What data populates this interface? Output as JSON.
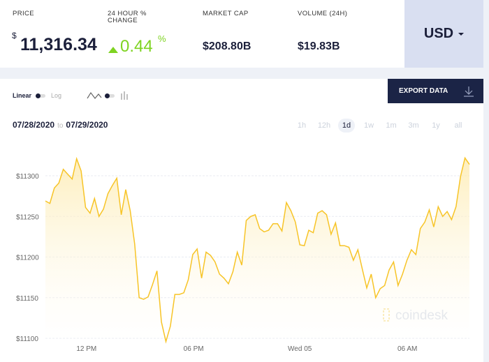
{
  "stats": {
    "price": {
      "label": "PRICE",
      "currency_symbol": "$",
      "value": "11,316.34"
    },
    "change": {
      "label": "24 HOUR % CHANGE",
      "value": "0.44",
      "unit": "%",
      "direction": "up",
      "color": "#7ed321"
    },
    "market_cap": {
      "label": "MARKET CAP",
      "value": "$208.80B"
    },
    "volume": {
      "label": "VOLUME (24H)",
      "value": "$19.83B"
    }
  },
  "currency_select": {
    "value": "USD"
  },
  "controls": {
    "linear_label": "Linear",
    "log_label": "Log",
    "scale": "linear",
    "chart_style": "line",
    "export_label": "EXPORT DATA"
  },
  "date_range": {
    "from": "07/28/2020",
    "to_word": "to",
    "to": "07/29/2020"
  },
  "ranges": [
    {
      "label": "1h"
    },
    {
      "label": "12h"
    },
    {
      "label": "1d",
      "active": true
    },
    {
      "label": "1w"
    },
    {
      "label": "1m"
    },
    {
      "label": "3m"
    },
    {
      "label": "1y"
    },
    {
      "label": "all"
    }
  ],
  "watermark": "coindesk",
  "chart_data": {
    "type": "area",
    "line_color": "#f7c427",
    "grid": true,
    "ylim": [
      11095,
      11325
    ],
    "y_ticks": [
      {
        "value": 11100,
        "label": "$11100"
      },
      {
        "value": 11150,
        "label": "$11150"
      },
      {
        "value": 11200,
        "label": "$11200"
      },
      {
        "value": 11250,
        "label": "$11250"
      },
      {
        "value": 11300,
        "label": "$11300"
      }
    ],
    "x_ticks": [
      {
        "index": 9.2,
        "label": "12 PM"
      },
      {
        "index": 33.2,
        "label": "06 PM"
      },
      {
        "index": 57,
        "label": "Wed 05"
      },
      {
        "index": 81.1,
        "label": "06 AM"
      }
    ],
    "values": [
      11269,
      11266,
      11285,
      11291,
      11308,
      11302,
      11296,
      11321,
      11306,
      11261,
      11254,
      11272,
      11250,
      11259,
      11278,
      11288,
      11297,
      11252,
      11283,
      11257,
      11216,
      11150,
      11148,
      11151,
      11166,
      11183,
      11120,
      11096,
      11115,
      11154,
      11154,
      11156,
      11172,
      11203,
      11210,
      11174,
      11206,
      11202,
      11194,
      11179,
      11174,
      11167,
      11182,
      11206,
      11190,
      11245,
      11250,
      11252,
      11235,
      11231,
      11233,
      11241,
      11241,
      11232,
      11267,
      11257,
      11243,
      11215,
      11214,
      11233,
      11230,
      11254,
      11257,
      11252,
      11228,
      11242,
      11214,
      11214,
      11212,
      11196,
      11209,
      11185,
      11162,
      11179,
      11150,
      11161,
      11165,
      11184,
      11194,
      11165,
      11179,
      11196,
      11209,
      11203,
      11235,
      11243,
      11258,
      11237,
      11262,
      11250,
      11256,
      11246,
      11262,
      11299,
      11322,
      11314
    ]
  }
}
